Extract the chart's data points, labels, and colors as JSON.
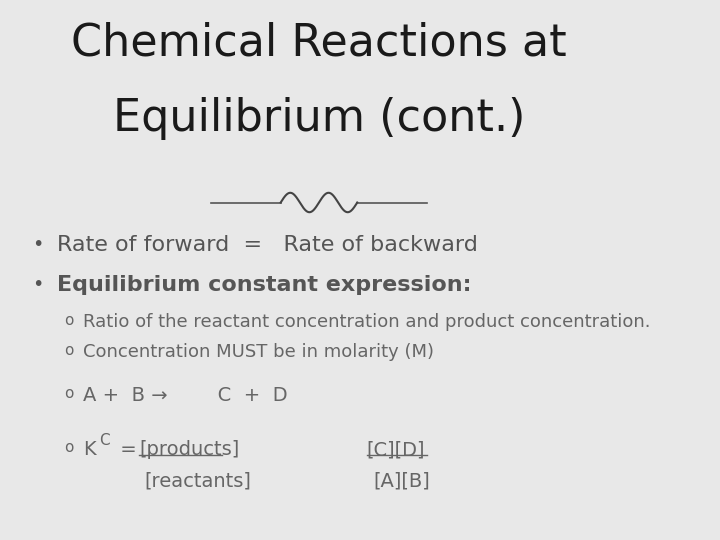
{
  "title_line1": "Chemical Reactions at",
  "title_line2": "Equilibrium (cont.)",
  "bg_color": "#e8e8e8",
  "title_color": "#1a1a1a",
  "title_fontsize": 32,
  "bullet1": "Rate of forward  =   Rate of backward",
  "bullet2_bold": "Equilibrium constant expression:",
  "sub1": "Ratio of the reactant concentration and product concentration.",
  "sub2": "Concentration MUST be in molarity (M)",
  "bullet_color": "#555555",
  "sub_color": "#666666",
  "bullet_fontsize": 16,
  "sub_fontsize": 13,
  "reaction_line": "A +  B →        C  +  D",
  "kc_label": "K",
  "kc_sub": "C",
  "products_top": "[products]",
  "reactants_bot": "[reactants]",
  "cd_top": "[C][D]",
  "ab_bot": "[A][B]"
}
